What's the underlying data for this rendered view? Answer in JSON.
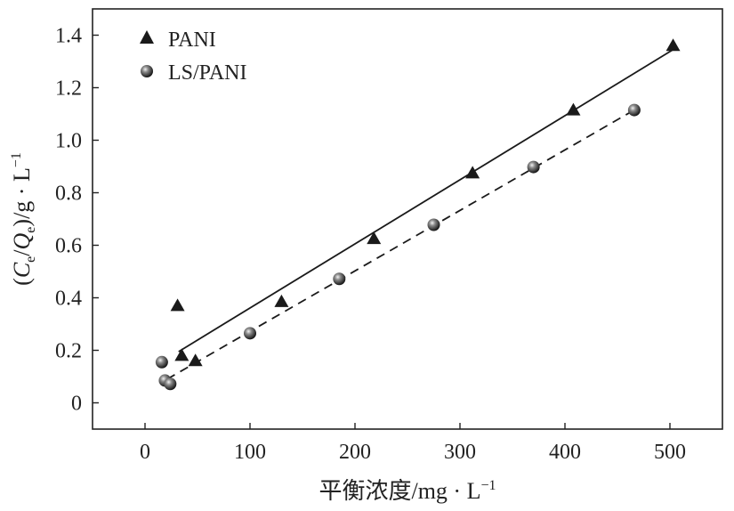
{
  "chart_data": {
    "type": "scatter",
    "title": "",
    "xlabel": "平衡浓度/mg · L⁻¹",
    "ylabel": "(Cₑ/Qₑ)/g · L⁻¹",
    "xlim": [
      -50,
      550
    ],
    "ylim": [
      -0.1,
      1.5
    ],
    "x_ticks": [
      "0",
      "100",
      "200",
      "300",
      "400",
      "500"
    ],
    "y_ticks": [
      "0",
      "0.2",
      "0.4",
      "0.6",
      "0.8",
      "1.0",
      "1.2",
      "1.4"
    ],
    "grid": false,
    "legend_position": "top-left",
    "series": [
      {
        "name": "PANI",
        "marker": "triangle",
        "color": "#1a1a1a",
        "points": [
          {
            "x": 31,
            "y": 0.37
          },
          {
            "x": 35,
            "y": 0.18
          },
          {
            "x": 48,
            "y": 0.16
          },
          {
            "x": 130,
            "y": 0.385
          },
          {
            "x": 218,
            "y": 0.625
          },
          {
            "x": 312,
            "y": 0.875
          },
          {
            "x": 408,
            "y": 1.115
          },
          {
            "x": 503,
            "y": 1.36
          }
        ],
        "fit": {
          "style": "solid",
          "from": {
            "x": 32,
            "y": 0.195
          },
          "to": {
            "x": 503,
            "y": 1.345
          }
        }
      },
      {
        "name": "LS/PANI",
        "marker": "sphere",
        "color": "#1a1a1a",
        "points": [
          {
            "x": 16,
            "y": 0.155
          },
          {
            "x": 19,
            "y": 0.085
          },
          {
            "x": 24,
            "y": 0.072
          },
          {
            "x": 100,
            "y": 0.265
          },
          {
            "x": 185,
            "y": 0.472
          },
          {
            "x": 275,
            "y": 0.678
          },
          {
            "x": 370,
            "y": 0.898
          },
          {
            "x": 466,
            "y": 1.115
          }
        ],
        "fit": {
          "style": "dashed",
          "from": {
            "x": 21,
            "y": 0.09
          },
          "to": {
            "x": 466,
            "y": 1.115
          }
        }
      }
    ]
  }
}
